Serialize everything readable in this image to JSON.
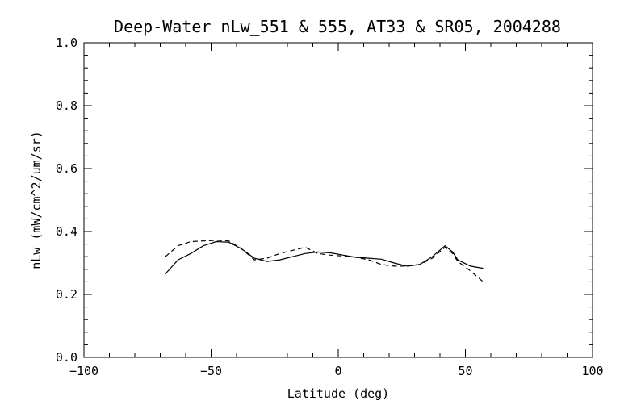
{
  "chart_data": {
    "type": "line",
    "title": "Deep-Water nLw_551 & 555, AT33 & SR05, 2004288",
    "xlabel": "Latitude (deg)",
    "ylabel": "nLw (mW/cm^2/um/sr)",
    "xlim": [
      -100,
      100
    ],
    "ylim": [
      0.0,
      1.0
    ],
    "x_ticks": [
      -100,
      -50,
      0,
      50,
      100
    ],
    "x_tick_labels": [
      "−100",
      "−50",
      "0",
      "50",
      "100"
    ],
    "y_ticks": [
      0.0,
      0.2,
      0.4,
      0.6,
      0.8,
      1.0
    ],
    "y_tick_labels": [
      "0.0",
      "0.2",
      "0.4",
      "0.6",
      "0.8",
      "1.0"
    ],
    "grid": false,
    "series": [
      {
        "style": "solid",
        "color": "#000000",
        "x": [
          -68,
          -63,
          -58,
          -53,
          -48,
          -43,
          -38,
          -33,
          -28,
          -23,
          -18,
          -13,
          -8,
          -3,
          2,
          7,
          12,
          17,
          22,
          27,
          32,
          37,
          42,
          45,
          47,
          52,
          57
        ],
        "y": [
          0.265,
          0.31,
          0.33,
          0.355,
          0.368,
          0.366,
          0.345,
          0.315,
          0.305,
          0.31,
          0.32,
          0.33,
          0.335,
          0.332,
          0.325,
          0.318,
          0.315,
          0.312,
          0.3,
          0.29,
          0.295,
          0.32,
          0.355,
          0.335,
          0.31,
          0.29,
          0.283
        ]
      },
      {
        "style": "dashed",
        "color": "#000000",
        "x": [
          -68,
          -63,
          -58,
          -53,
          -48,
          -43,
          -38,
          -33,
          -28,
          -23,
          -18,
          -13,
          -8,
          -3,
          2,
          7,
          12,
          17,
          22,
          27,
          32,
          37,
          42,
          45,
          47,
          52,
          57
        ],
        "y": [
          0.32,
          0.355,
          0.368,
          0.37,
          0.372,
          0.37,
          0.345,
          0.31,
          0.315,
          0.33,
          0.34,
          0.35,
          0.33,
          0.325,
          0.322,
          0.318,
          0.31,
          0.295,
          0.29,
          0.29,
          0.295,
          0.315,
          0.35,
          0.33,
          0.305,
          0.275,
          0.24
        ]
      }
    ]
  }
}
